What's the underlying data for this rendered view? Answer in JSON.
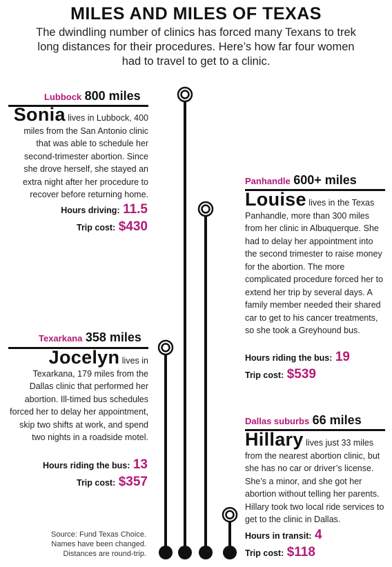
{
  "title": "MILES AND MILES OF TEXAS",
  "subtitle": "The dwindling number of clinics has forced many Texans to trek long distances for their procedures. Here’s how far four women had to travel to get to a clinic.",
  "source": {
    "line1": "Source: Fund Texas Choice.",
    "line2": "Names have been changed.",
    "line3": "Distances are round-trip."
  },
  "colors": {
    "accent": "#b21a78",
    "ink": "#111111"
  },
  "stories": [
    {
      "place": "Lubbock",
      "distance": "800 miles",
      "name": "Sonia",
      "text": "lives in Lubbock, 400 miles from the San Antonio clinic that was able to schedule her second-trimester abortion. Since she drove herself, she stayed an extra night after her procedure to recover before returning home.",
      "stat1_label": "Hours driving:",
      "stat1_value": "11.5",
      "stat2_label": "Trip cost:",
      "stat2_value": "$430"
    },
    {
      "place": "Panhandle",
      "distance": "600+ miles",
      "name": "Louise",
      "text": "lives in the Texas Panhandle, more than 300 miles from her clinic in Albuquerque. She had to delay her appointment into the second trimester to raise money for the abortion. The more complicated procedure forced her to extend her trip by several days. A family member needed their shared car to get to his cancer treatments, so she took a Greyhound bus.",
      "stat1_label": "Hours riding the bus:",
      "stat1_value": "19",
      "stat2_label": "Trip cost:",
      "stat2_value": "$539"
    },
    {
      "place": "Texarkana",
      "distance": "358 miles",
      "name": "Jocelyn",
      "text": "lives in Texarkana, 179 miles from the Dallas clinic that performed her abortion. Ill-timed bus schedules forced her to delay her appointment, skip two shifts at work, and spend two nights in a roadside motel.",
      "stat1_label": "Hours riding the bus:",
      "stat1_value": "13",
      "stat2_label": "Trip cost:",
      "stat2_value": "$357"
    },
    {
      "place": "Dallas suburbs",
      "distance": "66 miles",
      "name": "Hillary",
      "text": "lives just 33 miles from the nearest abortion clinic, but she has no car or driver’s license. She’s a minor, and she got her abortion without telling her parents. Hillary took two local ride services to get to the clinic in Dallas.",
      "stat1_label": "Hours in transit:",
      "stat1_value": "4",
      "stat2_label": "Trip cost:",
      "stat2_value": "$118"
    }
  ],
  "chart_data": {
    "type": "bar",
    "categories": [
      "Lubbock",
      "Panhandle",
      "Texarkana",
      "Dallas suburbs"
    ],
    "values": [
      800,
      600,
      358,
      66
    ],
    "title": "MILES AND MILES OF TEXAS",
    "xlabel": "",
    "ylabel": "",
    "ylim": [
      0,
      800
    ]
  }
}
